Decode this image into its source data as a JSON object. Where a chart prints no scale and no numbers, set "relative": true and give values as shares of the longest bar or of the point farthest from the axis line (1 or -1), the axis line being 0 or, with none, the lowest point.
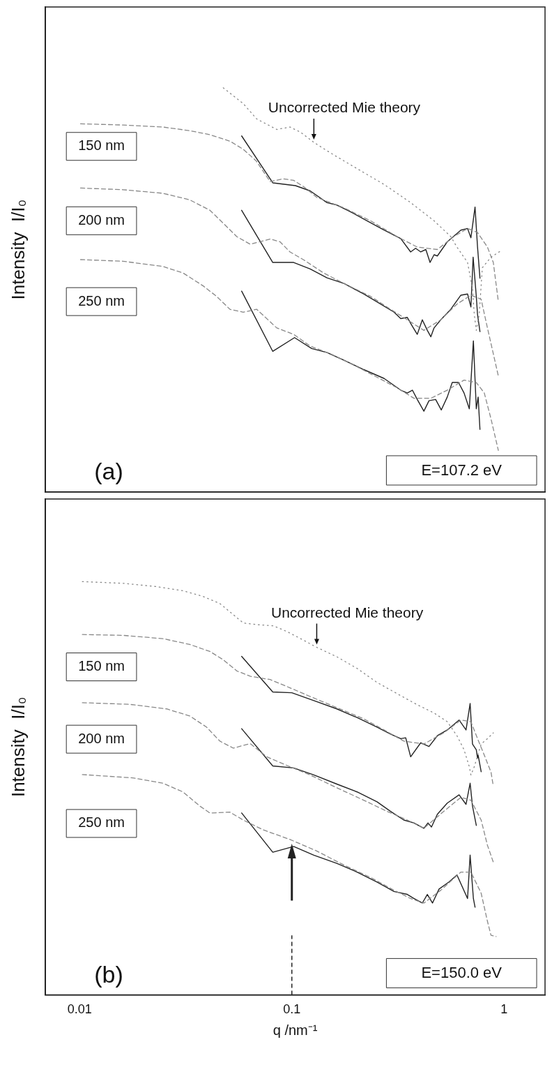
{
  "chart_data": [
    {
      "type": "line",
      "relative": true,
      "log": "x",
      "xlim": [
        0.0069,
        1.56
      ],
      "xticks": [
        0.01,
        0.1,
        1
      ],
      "ylabel": "Intensity  I/I₀",
      "tick_labels": false,
      "legend": false,
      "annotations": [
        "Uncorrected Mie theory",
        "150 nm",
        "200 nm",
        "250 nm",
        "(a)",
        "E=107.2 eV"
      ],
      "series": [
        {
          "color": "#888888",
          "line_style": "dotted",
          "x": [
            0.0475,
            0.059,
            0.0683,
            0.0849,
            0.098,
            0.11,
            0.127,
            0.152,
            0.203,
            0.272,
            0.363,
            0.468,
            0.561,
            0.6,
            0.673,
            0.71,
            0.724,
            0.74,
            0.764,
            0.79,
            0.868,
            0.968
          ],
          "values": [
            1.0,
            0.961,
            0.923,
            0.897,
            0.903,
            0.89,
            0.865,
            0.839,
            0.8,
            0.761,
            0.716,
            0.671,
            0.632,
            0.606,
            0.568,
            0.503,
            0.439,
            0.4,
            0.439,
            0.555,
            0.581,
            0.597
          ]
        },
        {
          "color": "#888888",
          "line_style": "dashed",
          "x": [
            0.0101,
            0.016,
            0.0247,
            0.033,
            0.0411,
            0.0511,
            0.059,
            0.068,
            0.079,
            0.091,
            0.102,
            0.114,
            0.131,
            0.176,
            0.235,
            0.313,
            0.39,
            0.485,
            0.58,
            0.673,
            0.75,
            0.835,
            0.89,
            0.94
          ],
          "values": [
            0.911,
            0.908,
            0.903,
            0.894,
            0.884,
            0.868,
            0.848,
            0.819,
            0.768,
            0.775,
            0.771,
            0.755,
            0.729,
            0.703,
            0.671,
            0.632,
            0.606,
            0.6,
            0.632,
            0.652,
            0.642,
            0.606,
            0.568,
            0.471
          ]
        },
        {
          "color": "#222222",
          "line_style": "solid",
          "x": [
            0.058,
            0.0813,
            0.104,
            0.122,
            0.1465,
            0.163,
            0.188,
            0.226,
            0.272,
            0.326,
            0.363,
            0.383,
            0.405,
            0.428,
            0.448,
            0.468,
            0.485,
            0.54,
            0.626,
            0.673,
            0.698,
            0.73,
            0.75,
            0.77
          ],
          "values": [
            0.881,
            0.765,
            0.758,
            0.745,
            0.716,
            0.71,
            0.694,
            0.671,
            0.648,
            0.627,
            0.594,
            0.603,
            0.594,
            0.6,
            0.568,
            0.587,
            0.584,
            0.619,
            0.648,
            0.652,
            0.629,
            0.705,
            0.606,
            0.529
          ]
        },
        {
          "color": "#888888",
          "line_style": "dashed",
          "x": [
            0.0101,
            0.016,
            0.0247,
            0.033,
            0.0411,
            0.0475,
            0.055,
            0.0636,
            0.079,
            0.088,
            0.098,
            0.114,
            0.141,
            0.176,
            0.235,
            0.292,
            0.35,
            0.419,
            0.503,
            0.6,
            0.698,
            0.78,
            0.835,
            0.89,
            0.94
          ],
          "values": [
            0.752,
            0.748,
            0.739,
            0.723,
            0.697,
            0.665,
            0.632,
            0.613,
            0.626,
            0.619,
            0.594,
            0.574,
            0.542,
            0.516,
            0.484,
            0.452,
            0.426,
            0.4,
            0.426,
            0.465,
            0.487,
            0.477,
            0.406,
            0.342,
            0.287
          ]
        },
        {
          "color": "#222222",
          "line_style": "solid",
          "x": [
            0.058,
            0.0813,
            0.102,
            0.122,
            0.1465,
            0.176,
            0.218,
            0.262,
            0.303,
            0.326,
            0.35,
            0.37,
            0.39,
            0.412,
            0.435,
            0.452,
            0.468,
            0.503,
            0.561,
            0.626,
            0.673,
            0.698,
            0.715,
            0.74,
            0.75,
            0.77
          ],
          "values": [
            0.697,
            0.568,
            0.568,
            0.552,
            0.53,
            0.516,
            0.49,
            0.465,
            0.445,
            0.429,
            0.432,
            0.41,
            0.39,
            0.426,
            0.4,
            0.384,
            0.406,
            0.426,
            0.452,
            0.487,
            0.49,
            0.458,
            0.581,
            0.484,
            0.439,
            0.397
          ]
        },
        {
          "color": "#888888",
          "line_style": "dashed",
          "x": [
            0.0101,
            0.016,
            0.0247,
            0.0307,
            0.0382,
            0.0442,
            0.0511,
            0.059,
            0.0683,
            0.0849,
            0.102,
            0.122,
            0.152,
            0.203,
            0.252,
            0.313,
            0.376,
            0.452,
            0.54,
            0.648,
            0.74,
            0.807,
            0.868,
            0.94
          ],
          "values": [
            0.575,
            0.571,
            0.558,
            0.542,
            0.51,
            0.484,
            0.452,
            0.445,
            0.452,
            0.406,
            0.39,
            0.361,
            0.342,
            0.31,
            0.284,
            0.258,
            0.232,
            0.232,
            0.252,
            0.277,
            0.271,
            0.245,
            0.181,
            0.103
          ]
        },
        {
          "color": "#222222",
          "line_style": "solid",
          "x": [
            0.058,
            0.0813,
            0.103,
            0.124,
            0.1465,
            0.176,
            0.218,
            0.272,
            0.326,
            0.35,
            0.37,
            0.39,
            0.419,
            0.443,
            0.476,
            0.506,
            0.54,
            0.57,
            0.61,
            0.648,
            0.686,
            0.717,
            0.74,
            0.755,
            0.77
          ],
          "values": [
            0.497,
            0.348,
            0.382,
            0.355,
            0.345,
            0.326,
            0.303,
            0.281,
            0.252,
            0.245,
            0.252,
            0.229,
            0.2,
            0.226,
            0.229,
            0.203,
            0.235,
            0.271,
            0.271,
            0.245,
            0.206,
            0.374,
            0.206,
            0.235,
            0.155
          ]
        }
      ]
    },
    {
      "type": "line",
      "relative": true,
      "log": "x",
      "xlim": [
        0.0069,
        1.56
      ],
      "xticks": [
        0.01,
        0.1,
        1
      ],
      "xlabel": "q /nm⁻¹",
      "ylabel": "Intensity  I/I₀",
      "tick_labels": "x",
      "legend": false,
      "annotations": [
        "Uncorrected Mie theory",
        "150 nm",
        "200 nm",
        "250 nm",
        "(b)",
        "E=150.0 eV"
      ],
      "ref_lines": [
        {
          "axis": "x",
          "value": 0.1,
          "line_style": "dashed",
          "color": "#222222"
        }
      ],
      "series": [
        {
          "color": "#888888",
          "line_style": "dotted",
          "x": [
            0.0103,
            0.016,
            0.023,
            0.0307,
            0.0382,
            0.0458,
            0.053,
            0.059,
            0.0683,
            0.082,
            0.095,
            0.11,
            0.131,
            0.163,
            0.203,
            0.252,
            0.313,
            0.39,
            0.468,
            0.54,
            0.6,
            0.648,
            0.686,
            0.698,
            0.724,
            0.78,
            0.835,
            0.89
          ],
          "values": [
            1.0,
            0.996,
            0.988,
            0.978,
            0.964,
            0.947,
            0.92,
            0.9,
            0.896,
            0.893,
            0.879,
            0.862,
            0.841,
            0.818,
            0.79,
            0.756,
            0.729,
            0.702,
            0.682,
            0.661,
            0.627,
            0.593,
            0.552,
            0.532,
            0.552,
            0.607,
            0.62,
            0.634
          ]
        },
        {
          "color": "#888888",
          "line_style": "dashed",
          "x": [
            0.0103,
            0.016,
            0.0247,
            0.033,
            0.0411,
            0.0475,
            0.055,
            0.0636,
            0.079,
            0.098,
            0.122,
            0.163,
            0.218,
            0.272,
            0.337,
            0.419,
            0.52,
            0.626,
            0.698,
            0.75,
            0.807,
            0.868,
            0.89
          ],
          "values": [
            0.872,
            0.87,
            0.862,
            0.848,
            0.831,
            0.811,
            0.784,
            0.771,
            0.763,
            0.743,
            0.722,
            0.695,
            0.668,
            0.641,
            0.614,
            0.607,
            0.634,
            0.665,
            0.661,
            0.62,
            0.58,
            0.539,
            0.505
          ]
        },
        {
          "color": "#222222",
          "line_style": "solid",
          "x": [
            0.058,
            0.0813,
            0.1,
            0.127,
            0.163,
            0.203,
            0.252,
            0.292,
            0.326,
            0.344,
            0.363,
            0.405,
            0.443,
            0.485,
            0.54,
            0.614,
            0.662,
            0.692,
            0.71,
            0.74,
            0.75,
            0.755,
            0.78
          ],
          "values": [
            0.819,
            0.733,
            0.731,
            0.712,
            0.692,
            0.671,
            0.648,
            0.631,
            0.62,
            0.622,
            0.576,
            0.61,
            0.601,
            0.627,
            0.641,
            0.665,
            0.641,
            0.705,
            0.607,
            0.593,
            0.573,
            0.58,
            0.54
          ]
        },
        {
          "color": "#888888",
          "line_style": "dashed",
          "x": [
            0.0103,
            0.0172,
            0.0257,
            0.033,
            0.0396,
            0.0458,
            0.053,
            0.0636,
            0.0762,
            0.098,
            0.122,
            0.163,
            0.218,
            0.281,
            0.35,
            0.419,
            0.52,
            0.626,
            0.698,
            0.78,
            0.835,
            0.89
          ],
          "values": [
            0.707,
            0.703,
            0.692,
            0.675,
            0.648,
            0.614,
            0.597,
            0.608,
            0.576,
            0.552,
            0.532,
            0.501,
            0.471,
            0.444,
            0.423,
            0.403,
            0.444,
            0.478,
            0.471,
            0.423,
            0.362,
            0.321
          ]
        },
        {
          "color": "#222222",
          "line_style": "solid",
          "x": [
            0.058,
            0.0813,
            0.102,
            0.127,
            0.163,
            0.203,
            0.252,
            0.292,
            0.337,
            0.376,
            0.419,
            0.438,
            0.455,
            0.485,
            0.54,
            0.614,
            0.662,
            0.692,
            0.71,
            0.74
          ],
          "values": [
            0.644,
            0.554,
            0.549,
            0.532,
            0.51,
            0.491,
            0.467,
            0.444,
            0.423,
            0.416,
            0.403,
            0.416,
            0.406,
            0.437,
            0.464,
            0.484,
            0.461,
            0.512,
            0.457,
            0.41
          ]
        },
        {
          "color": "#888888",
          "line_style": "dashed",
          "x": [
            0.0103,
            0.0178,
            0.0247,
            0.0307,
            0.0368,
            0.0411,
            0.0511,
            0.059,
            0.0734,
            0.098,
            0.131,
            0.176,
            0.235,
            0.303,
            0.363,
            0.419,
            0.503,
            0.626,
            0.698,
            0.78,
            0.835,
            0.868,
            0.917
          ],
          "values": [
            0.533,
            0.525,
            0.512,
            0.491,
            0.457,
            0.44,
            0.442,
            0.423,
            0.399,
            0.376,
            0.348,
            0.314,
            0.284,
            0.253,
            0.233,
            0.222,
            0.253,
            0.297,
            0.297,
            0.246,
            0.178,
            0.144,
            0.141
          ]
        },
        {
          "color": "#222222",
          "line_style": "solid",
          "x": [
            0.058,
            0.0813,
            0.102,
            0.127,
            0.163,
            0.203,
            0.252,
            0.303,
            0.35,
            0.376,
            0.412,
            0.435,
            0.46,
            0.494,
            0.55,
            0.6,
            0.673,
            0.692,
            0.717,
            0.73
          ],
          "values": [
            0.44,
            0.345,
            0.359,
            0.338,
            0.318,
            0.297,
            0.273,
            0.25,
            0.243,
            0.233,
            0.222,
            0.243,
            0.222,
            0.256,
            0.273,
            0.29,
            0.233,
            0.338,
            0.233,
            0.212
          ]
        }
      ]
    }
  ]
}
